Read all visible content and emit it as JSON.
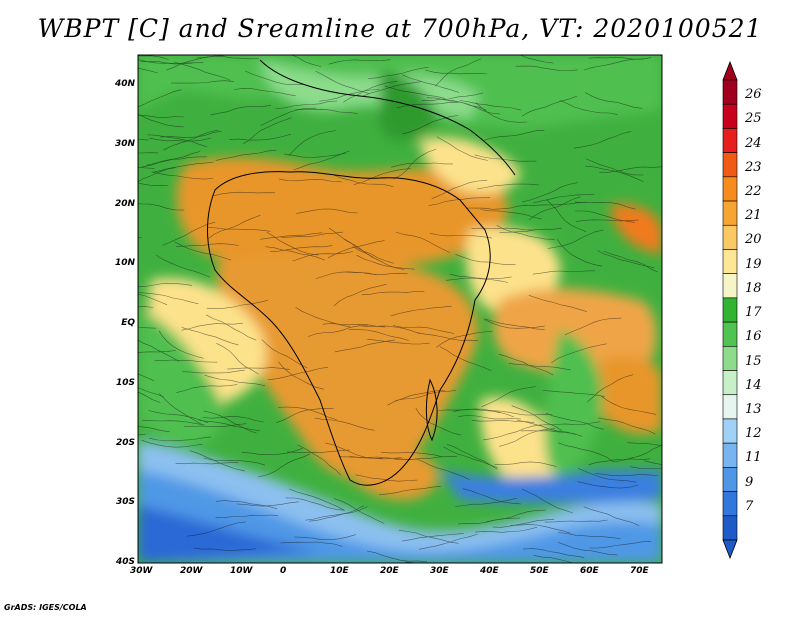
{
  "title": "WBPT [C] and Sreamline at 700hPa, VT: 2020100521",
  "credit": "GrADS: IGES/COLA",
  "map": {
    "lat_labels": [
      "40N",
      "30N",
      "20N",
      "10N",
      "EQ",
      "10S",
      "20S",
      "30S",
      "40S"
    ],
    "lon_labels": [
      "30W",
      "20W",
      "10W",
      "0",
      "10E",
      "20E",
      "30E",
      "40E",
      "50E",
      "60E",
      "70E"
    ]
  },
  "colorbar": {
    "labels": [
      "26",
      "25",
      "24",
      "23",
      "22",
      "21",
      "20",
      "19",
      "18",
      "17",
      "16",
      "15",
      "14",
      "13",
      "12",
      "11",
      "9",
      "7"
    ],
    "colors": [
      "#a0001e",
      "#c8001e",
      "#e61e1e",
      "#f05a14",
      "#f78c1e",
      "#f7a532",
      "#fac864",
      "#fde696",
      "#f5f5c8",
      "#32b432",
      "#50c350",
      "#8cdc8c",
      "#c8f0c8",
      "#e6f5f0",
      "#a0d2f5",
      "#78b4f0",
      "#5096e6",
      "#3278dc",
      "#1e5ac8"
    ]
  },
  "colors": {
    "ocean_cold": "#2a69d6",
    "ocean_mid": "#8cc0f0",
    "green_mid": "#3aad3a",
    "green_light": "#7dd67d",
    "orange": "#e7962c",
    "yellow": "#fde28c"
  }
}
